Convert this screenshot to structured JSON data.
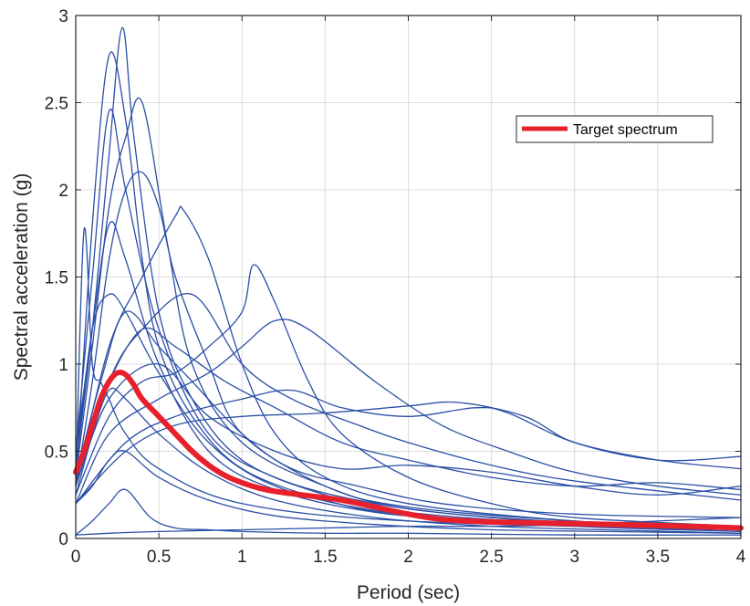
{
  "chart_data": {
    "type": "line",
    "title": "",
    "xlabel": "Period (sec)",
    "ylabel": "Spectral acceleration (g)",
    "xlim": [
      0,
      4
    ],
    "ylim": [
      0,
      3
    ],
    "xticks": [
      0,
      0.5,
      1,
      1.5,
      2,
      2.5,
      3,
      3.5,
      4
    ],
    "yticks": [
      0,
      0.5,
      1,
      1.5,
      2,
      2.5,
      3
    ],
    "xtick_labels": [
      "0",
      "0.5",
      "1",
      "1.5",
      "2",
      "2.5",
      "3",
      "3.5",
      "4"
    ],
    "ytick_labels": [
      "0",
      "0.5",
      "1",
      "1.5",
      "2",
      "2.5",
      "3"
    ],
    "grid": true,
    "legend": {
      "position": "top-right",
      "entries": [
        "Target spectrum"
      ]
    },
    "colors": {
      "records": "#2b4fa6",
      "target": "#e8202c",
      "grid": "#dcdcdc",
      "axes": "#262626"
    },
    "target_series": {
      "name": "Target spectrum",
      "x": [
        0,
        0.05,
        0.1,
        0.15,
        0.2,
        0.25,
        0.3,
        0.35,
        0.4,
        0.5,
        0.6,
        0.7,
        0.8,
        0.9,
        1.0,
        1.1,
        1.2,
        1.4,
        1.6,
        1.8,
        2.0,
        2.2,
        2.5,
        3.0,
        3.5,
        4.0
      ],
      "y": [
        0.38,
        0.5,
        0.65,
        0.8,
        0.9,
        0.95,
        0.94,
        0.88,
        0.8,
        0.7,
        0.6,
        0.5,
        0.42,
        0.36,
        0.32,
        0.29,
        0.27,
        0.245,
        0.22,
        0.18,
        0.14,
        0.11,
        0.095,
        0.085,
        0.075,
        0.06
      ]
    },
    "record_series": [
      {
        "x": [
          0,
          0.1,
          0.2,
          0.28,
          0.35,
          0.5,
          0.7,
          1.0,
          1.5,
          2.0,
          3.0,
          4.0
        ],
        "y": [
          0.4,
          1.2,
          2.2,
          2.93,
          2.3,
          1.3,
          0.8,
          0.45,
          0.25,
          0.15,
          0.08,
          0.05
        ]
      },
      {
        "x": [
          0,
          0.1,
          0.2,
          0.3,
          0.4,
          0.5,
          0.7,
          1.0,
          1.5,
          2.0,
          3.0,
          4.0
        ],
        "y": [
          0.3,
          1.8,
          2.77,
          2.4,
          1.6,
          1.1,
          0.7,
          0.4,
          0.22,
          0.13,
          0.07,
          0.04
        ]
      },
      {
        "x": [
          0,
          0.1,
          0.2,
          0.3,
          0.4,
          0.55,
          0.7,
          1.0,
          1.5,
          2.0,
          3.0,
          4.0
        ],
        "y": [
          0.35,
          1.1,
          1.9,
          2.3,
          2.5,
          1.7,
          1.0,
          0.55,
          0.3,
          0.17,
          0.09,
          0.05
        ]
      },
      {
        "x": [
          0,
          0.1,
          0.2,
          0.3,
          0.4,
          0.5,
          0.6,
          0.8,
          1.0,
          1.5,
          2.0,
          3.0,
          4.0
        ],
        "y": [
          0.3,
          0.9,
          1.6,
          2.0,
          2.1,
          1.9,
          1.5,
          1.0,
          0.6,
          0.3,
          0.18,
          0.1,
          0.06
        ]
      },
      {
        "x": [
          0,
          0.2,
          0.4,
          0.6,
          0.65,
          0.8,
          1.0,
          1.2,
          1.5,
          2.0,
          3.0,
          4.0
        ],
        "y": [
          0.3,
          1.1,
          1.5,
          1.85,
          1.88,
          1.6,
          1.0,
          0.6,
          0.35,
          0.2,
          0.1,
          0.06
        ]
      },
      {
        "x": [
          0,
          0.2,
          0.4,
          0.6,
          0.8,
          1.0,
          1.07,
          1.2,
          1.4,
          1.6,
          2.0,
          2.5,
          3.0,
          4.0
        ],
        "y": [
          0.25,
          0.7,
          0.9,
          0.95,
          1.1,
          1.3,
          1.57,
          1.35,
          0.9,
          0.6,
          0.35,
          0.2,
          0.12,
          0.07
        ]
      },
      {
        "x": [
          0,
          0.2,
          0.5,
          0.8,
          1.0,
          1.2,
          1.4,
          1.8,
          2.2,
          2.6,
          3.0,
          3.5,
          4.0
        ],
        "y": [
          0.2,
          0.6,
          0.8,
          0.95,
          1.1,
          1.25,
          1.2,
          0.9,
          0.65,
          0.5,
          0.38,
          0.3,
          0.25
        ]
      },
      {
        "x": [
          0,
          0.3,
          0.6,
          1.0,
          1.3,
          1.6,
          2.0,
          2.4,
          2.6,
          3.0,
          3.5,
          4.0
        ],
        "y": [
          0.2,
          0.55,
          0.7,
          0.8,
          0.85,
          0.75,
          0.7,
          0.75,
          0.72,
          0.55,
          0.45,
          0.4
        ]
      },
      {
        "x": [
          0,
          0.3,
          0.6,
          1.0,
          1.5,
          2.0,
          2.3,
          2.7,
          3.0,
          3.5,
          4.0
        ],
        "y": [
          0.2,
          0.5,
          0.65,
          0.7,
          0.72,
          0.76,
          0.78,
          0.7,
          0.55,
          0.45,
          0.47
        ]
      },
      {
        "x": [
          0,
          0.2,
          0.5,
          0.8,
          1.2,
          1.6,
          2.0,
          2.5,
          3.0,
          3.5,
          4.0
        ],
        "y": [
          0.3,
          0.8,
          1.0,
          0.7,
          0.5,
          0.4,
          0.42,
          0.38,
          0.3,
          0.25,
          0.3
        ]
      },
      {
        "x": [
          0,
          0.2,
          0.4,
          0.7,
          1.0,
          1.3,
          1.7,
          2.0,
          2.5,
          3.0,
          4.0
        ],
        "y": [
          0.25,
          0.9,
          1.2,
          1.4,
          1.0,
          0.8,
          0.65,
          0.55,
          0.42,
          0.33,
          0.22
        ]
      },
      {
        "x": [
          0,
          0.1,
          0.2,
          0.3,
          0.5,
          0.8,
          1.2,
          1.8,
          2.5,
          3.2,
          4.0
        ],
        "y": [
          0.5,
          1.5,
          2.45,
          2.0,
          1.2,
          0.6,
          0.35,
          0.2,
          0.12,
          0.08,
          0.05
        ]
      },
      {
        "x": [
          0,
          0.1,
          0.2,
          0.3,
          0.5,
          0.8,
          1.2,
          1.8,
          2.5,
          3.2,
          4.0
        ],
        "y": [
          0.4,
          1.2,
          1.4,
          1.3,
          0.95,
          0.55,
          0.3,
          0.16,
          0.1,
          0.07,
          0.04
        ]
      },
      {
        "x": [
          0,
          0.1,
          0.2,
          0.3,
          0.5,
          0.8,
          1.2,
          1.8,
          2.5,
          3.2,
          4.0
        ],
        "y": [
          0.3,
          0.6,
          0.85,
          0.8,
          0.6,
          0.38,
          0.22,
          0.12,
          0.07,
          0.05,
          0.03
        ]
      },
      {
        "x": [
          0,
          0.1,
          0.2,
          0.3,
          0.5,
          0.8,
          1.2,
          1.8,
          2.5,
          3.2,
          4.0
        ],
        "y": [
          0.2,
          0.3,
          0.45,
          0.5,
          0.35,
          0.22,
          0.13,
          0.08,
          0.05,
          0.04,
          0.03
        ]
      },
      {
        "x": [
          0,
          0.1,
          0.2,
          0.3,
          0.45,
          0.6,
          0.8,
          1.0,
          1.5,
          2.0,
          3.0,
          4.0
        ],
        "y": [
          0.02,
          0.1,
          0.2,
          0.28,
          0.12,
          0.06,
          0.05,
          0.04,
          0.03,
          0.03,
          0.02,
          0.02
        ]
      },
      {
        "x": [
          0,
          0.05,
          0.1,
          0.15,
          0.2,
          0.3,
          0.5,
          1.0,
          2.0,
          4.0
        ],
        "y": [
          0.3,
          1.77,
          1.0,
          0.9,
          0.8,
          0.6,
          0.4,
          0.2,
          0.1,
          0.05
        ]
      },
      {
        "x": [
          0,
          0.1,
          0.2,
          0.4,
          0.6,
          0.9,
          1.2,
          1.6,
          2.0,
          2.5,
          3.0,
          3.5,
          4.0
        ],
        "y": [
          0.3,
          0.6,
          0.9,
          1.2,
          1.1,
          0.9,
          0.75,
          0.55,
          0.45,
          0.35,
          0.3,
          0.32,
          0.28
        ]
      },
      {
        "x": [
          0,
          0.2,
          0.5,
          1.0,
          1.5,
          2.0,
          2.5,
          3.0,
          3.5,
          4.0
        ],
        "y": [
          0.02,
          0.03,
          0.04,
          0.05,
          0.06,
          0.07,
          0.07,
          0.08,
          0.1,
          0.12
        ]
      },
      {
        "x": [
          0,
          0.1,
          0.2,
          0.3,
          0.5,
          0.8,
          1.2,
          1.8,
          2.5,
          3.2,
          4.0
        ],
        "y": [
          0.5,
          1.2,
          1.8,
          1.6,
          1.0,
          0.5,
          0.28,
          0.15,
          0.1,
          0.07,
          0.05
        ]
      },
      {
        "x": [
          0,
          0.15,
          0.3,
          0.5,
          0.7,
          1.0,
          1.3,
          1.7,
          2.2,
          3.0,
          4.0
        ],
        "y": [
          0.35,
          0.9,
          1.3,
          1.1,
          0.9,
          0.6,
          0.4,
          0.3,
          0.2,
          0.14,
          0.12
        ]
      }
    ]
  }
}
